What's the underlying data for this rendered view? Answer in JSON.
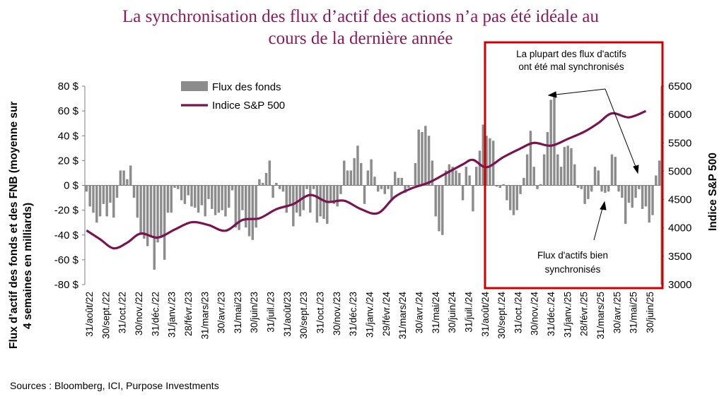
{
  "title_line1": "La synchronisation des flux d’actif des actions n’a pas été idéale au",
  "title_line2": "cours de la dernière année",
  "source": "Sources : Bloomberg, ICI, Purpose Investments",
  "colors": {
    "title": "#8b1a5c",
    "bars": "#8c8c8c",
    "line": "#7a1450",
    "highlight_box": "#cc0000"
  },
  "chart_data": {
    "type": "bar+line",
    "ylabel_left_line1": "Flux d’actif des fonds et des FNB (moyenne sur",
    "ylabel_left_line2": "4 semaines en milliards)",
    "ylabel_right": "Indice S&P 500",
    "y_left_ticks": [
      "80 $",
      "60 $",
      "40 $",
      "20 $",
      "0 $",
      "-20 $",
      "-40 $",
      "-60 $",
      "-80 $"
    ],
    "y_right_ticks": [
      "6500",
      "6000",
      "5500",
      "5000",
      "4500",
      "4000",
      "3500",
      "3000"
    ],
    "ylim_left": [
      -80,
      80
    ],
    "ylim_right": [
      3000,
      6500
    ],
    "x_labels": [
      "31/août/22",
      "30/sept./22",
      "31/oct./22",
      "30/nov./22",
      "31/déc./22",
      "31/janv./23",
      "28/févr./23",
      "31/mars/23",
      "30/avr./23",
      "31/mai/23",
      "30/juin/23",
      "31/juil./23",
      "31/août/23",
      "30/sept./23",
      "31/oct./23",
      "30/nov./23",
      "31/déc./23",
      "31/janv./24",
      "29/févr./24",
      "31/mars/24",
      "30/avr./24",
      "31/mai/24",
      "30/juin/24",
      "31/juil./24",
      "31/août/24",
      "30/sept./24",
      "31/oct./24",
      "30/nov./24",
      "31/déc./24",
      "31/janv./25",
      "28/févr./25",
      "31/mars/25",
      "30/avr./25",
      "31/mai/25",
      "30/juin/25"
    ],
    "series": [
      {
        "name": "Flux des fonds",
        "kind": "bar",
        "values": [
          -5,
          -17,
          -22,
          -30,
          -25,
          -15,
          -25,
          -14,
          -26,
          -10,
          12,
          12,
          5,
          16,
          -10,
          -26,
          -40,
          -43,
          -49,
          -42,
          -68,
          -46,
          -42,
          -60,
          -22,
          -22,
          -2,
          -3,
          -12,
          -15,
          -8,
          -17,
          -18,
          -22,
          -16,
          -25,
          -11,
          -19,
          -24,
          -22,
          -20,
          -25,
          -18,
          -4,
          -34,
          -36,
          -20,
          -34,
          -41,
          -44,
          -34,
          5,
          2,
          10,
          20,
          -10,
          2,
          -3,
          -5,
          -22,
          -15,
          -33,
          -22,
          -25,
          -20,
          -3,
          -22,
          -3,
          -30,
          -25,
          -27,
          -31,
          -14,
          -15,
          -17,
          -7,
          20,
          12,
          12,
          22,
          32,
          18,
          -15,
          12,
          21,
          7,
          -5,
          -3,
          -7,
          -3,
          -12,
          11,
          6,
          6,
          -6,
          -2,
          0,
          18,
          45,
          43,
          48,
          40,
          20,
          -25,
          -37,
          -40,
          12,
          17,
          15,
          12,
          10,
          -12,
          15,
          8,
          -21,
          15,
          28,
          49,
          40,
          38,
          36,
          -1,
          -2,
          1,
          -12,
          -20,
          -24,
          -20,
          -7,
          6,
          25,
          44,
          15,
          -3,
          1,
          25,
          43,
          69,
          72,
          25,
          15,
          31,
          32,
          30,
          17,
          -2,
          -3,
          -15,
          -11,
          -5,
          15,
          12,
          -5,
          -6,
          -5,
          25,
          23,
          -5,
          -10,
          -31,
          -14,
          -18,
          -10,
          -3,
          -19,
          -17,
          -30,
          -24,
          8,
          20
        ]
      },
      {
        "name": "Indice S&P 500",
        "kind": "line",
        "x_index": [
          0,
          4,
          8,
          12,
          16,
          21,
          26,
          31,
          36,
          41,
          46,
          51,
          56,
          61,
          66,
          71,
          76,
          81,
          86,
          91,
          96,
          101,
          106,
          111,
          114,
          118,
          123,
          128,
          132,
          137,
          142,
          147,
          151,
          155,
          160,
          165
        ],
        "values": [
          3955,
          3800,
          3640,
          3740,
          3900,
          3830,
          3970,
          4100,
          4050,
          3950,
          4140,
          4170,
          4330,
          4420,
          4580,
          4460,
          4480,
          4330,
          4260,
          4550,
          4700,
          4800,
          4960,
          5120,
          5200,
          5070,
          5250,
          5400,
          5500,
          5450,
          5570,
          5700,
          5850,
          6020,
          5950,
          6060
        ]
      }
    ],
    "annotations": [
      {
        "line1": "La plupart des flux d'actifs",
        "line2": "ont été mal synchronisés"
      },
      {
        "line1": "Flux d'actifs bien",
        "line2": "synchronisés"
      }
    ]
  }
}
